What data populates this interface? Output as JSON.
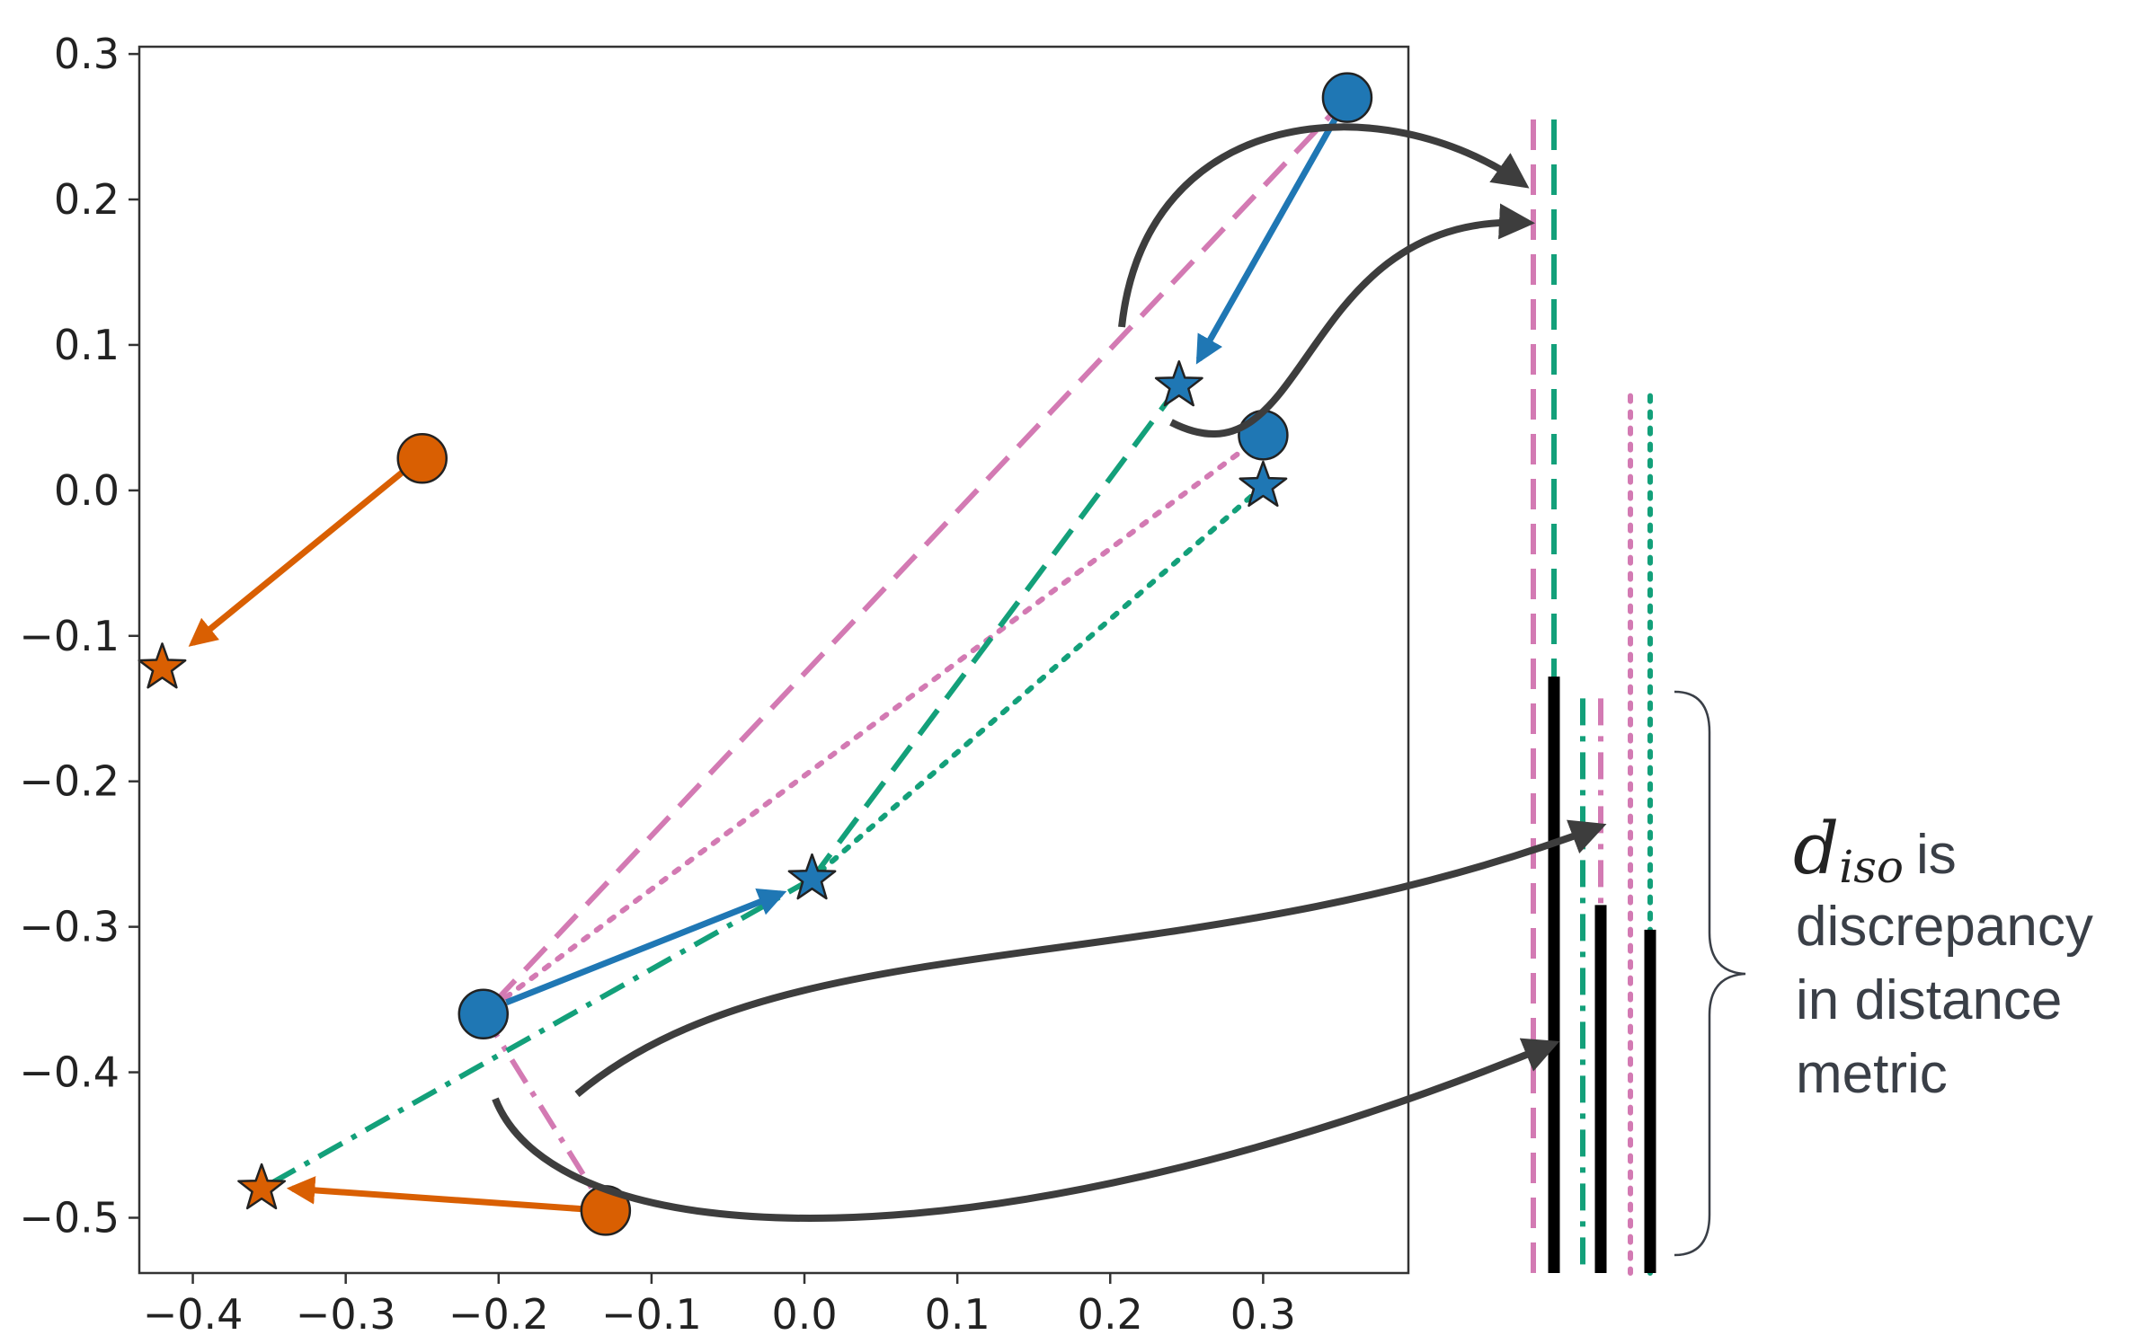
{
  "plot": {
    "xlim": [
      -0.435,
      0.395
    ],
    "ylim": [
      -0.538,
      0.305
    ],
    "x_ticks": [
      -0.4,
      -0.3,
      -0.2,
      -0.1,
      0.0,
      0.1,
      0.2,
      0.3
    ],
    "y_ticks": [
      0.3,
      0.2,
      0.1,
      0.0,
      -0.1,
      -0.2,
      -0.3,
      -0.4,
      -0.5
    ],
    "x_tick_labels": [
      "−0.4",
      "−0.3",
      "−0.2",
      "−0.1",
      "0.0",
      "0.1",
      "0.2",
      "0.3"
    ],
    "y_tick_labels": [
      "0.3",
      "0.2",
      "0.1",
      "0.0",
      "−0.1",
      "−0.2",
      "−0.3",
      "−0.4",
      "−0.5"
    ]
  },
  "colors": {
    "blue": "#1f77b4",
    "orange": "#d95f02",
    "pink": "#d37ab3",
    "green": "#13a07a",
    "arrow": "#3d3d3d",
    "black": "#000000"
  },
  "points": {
    "circles": [
      {
        "id": "blue-a",
        "x": 0.355,
        "y": 0.27,
        "color": "blue"
      },
      {
        "id": "blue-b",
        "x": 0.3,
        "y": 0.038,
        "color": "blue"
      },
      {
        "id": "blue-c",
        "x": -0.21,
        "y": -0.36,
        "color": "blue"
      },
      {
        "id": "orange-a",
        "x": -0.25,
        "y": 0.022,
        "color": "orange"
      },
      {
        "id": "orange-b",
        "x": -0.13,
        "y": -0.495,
        "color": "orange"
      }
    ],
    "stars": [
      {
        "id": "blue-a",
        "x": 0.245,
        "y": 0.072,
        "color": "blue"
      },
      {
        "id": "blue-b",
        "x": 0.3,
        "y": 0.003,
        "color": "blue"
      },
      {
        "id": "blue-c",
        "x": 0.005,
        "y": -0.267,
        "color": "blue"
      },
      {
        "id": "orange-a",
        "x": -0.42,
        "y": -0.122,
        "color": "orange"
      },
      {
        "id": "orange-b",
        "x": -0.355,
        "y": -0.48,
        "color": "orange"
      }
    ]
  },
  "moves": [
    {
      "from": [
        0.355,
        0.27
      ],
      "to": [
        0.258,
        0.09
      ],
      "color": "blue"
    },
    {
      "from": [
        -0.195,
        -0.352
      ],
      "to": [
        -0.015,
        -0.277
      ],
      "color": "blue"
    },
    {
      "from": [
        -0.26,
        0.015
      ],
      "to": [
        -0.4,
        -0.105
      ],
      "color": "orange"
    },
    {
      "from": [
        -0.145,
        -0.494
      ],
      "to": [
        -0.335,
        -0.48
      ],
      "color": "orange"
    }
  ],
  "distance_lines": [
    {
      "from": [
        0.355,
        0.27
      ],
      "to": [
        -0.21,
        -0.36
      ],
      "color": "pink",
      "style": "dashed"
    },
    {
      "from": [
        -0.21,
        -0.36
      ],
      "to": [
        -0.13,
        -0.495
      ],
      "color": "pink",
      "style": "dashdot"
    },
    {
      "from": [
        0.3,
        0.038
      ],
      "to": [
        -0.21,
        -0.36
      ],
      "color": "pink",
      "style": "dotted"
    },
    {
      "from": [
        0.245,
        0.072
      ],
      "to": [
        0.005,
        -0.267
      ],
      "color": "green",
      "style": "dashed"
    },
    {
      "from": [
        0.005,
        -0.267
      ],
      "to": [
        -0.355,
        -0.48
      ],
      "color": "green",
      "style": "dashdot"
    },
    {
      "from": [
        0.3,
        0.003
      ],
      "to": [
        0.005,
        -0.267
      ],
      "color": "green",
      "style": "dotted"
    }
  ],
  "bars": [
    {
      "color": "pink",
      "style": "dashed",
      "top": 0.255,
      "black_top": null
    },
    {
      "color": "green",
      "style": "dashed",
      "top": 0.255,
      "black_top": -0.128
    },
    {
      "color": "green",
      "style": "dashdot",
      "top": -0.143,
      "black_top": null
    },
    {
      "color": "pink",
      "style": "dashdot",
      "top": -0.143,
      "black_top": -0.285
    },
    {
      "color": "pink",
      "style": "dotted",
      "top": 0.065,
      "black_top": null
    },
    {
      "color": "green",
      "style": "dotted",
      "top": 0.065,
      "black_top": -0.302
    }
  ],
  "annotation": {
    "symbol": "d",
    "subscript": "iso",
    "line1_rest": "is",
    "lines": [
      "discrepancy",
      "in distance",
      "metric"
    ]
  }
}
